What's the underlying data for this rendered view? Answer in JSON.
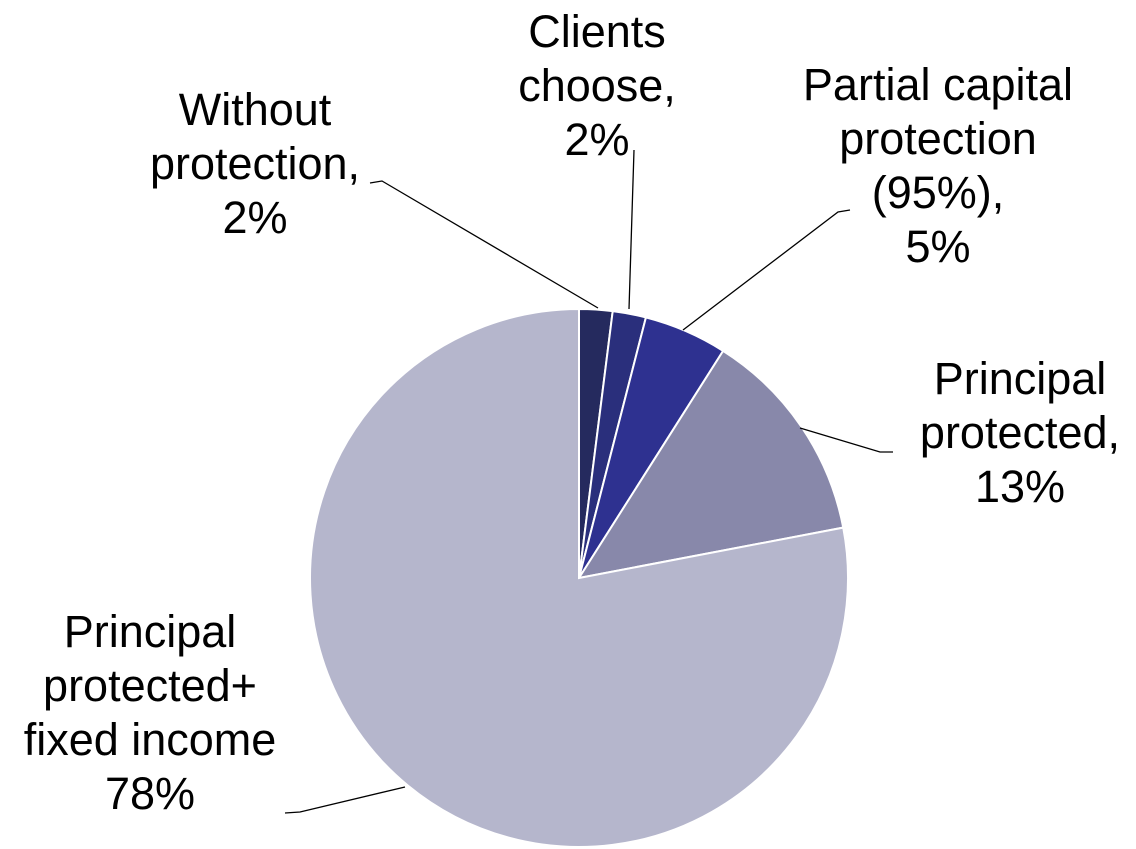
{
  "chart_data": {
    "type": "pie",
    "categories": [
      "Without protection,",
      "Clients choose,",
      "Partial capital protection (95%),",
      "Principal protected,",
      "Principal protected+ fixed income"
    ],
    "values": [
      2,
      2,
      5,
      13,
      78
    ],
    "value_labels": [
      "2%",
      "2%",
      "5%",
      "13%",
      "78%"
    ],
    "colors": [
      "#252a5e",
      "#2a2f7c",
      "#2e3190",
      "#8888aa",
      "#b5b6cc"
    ]
  }
}
